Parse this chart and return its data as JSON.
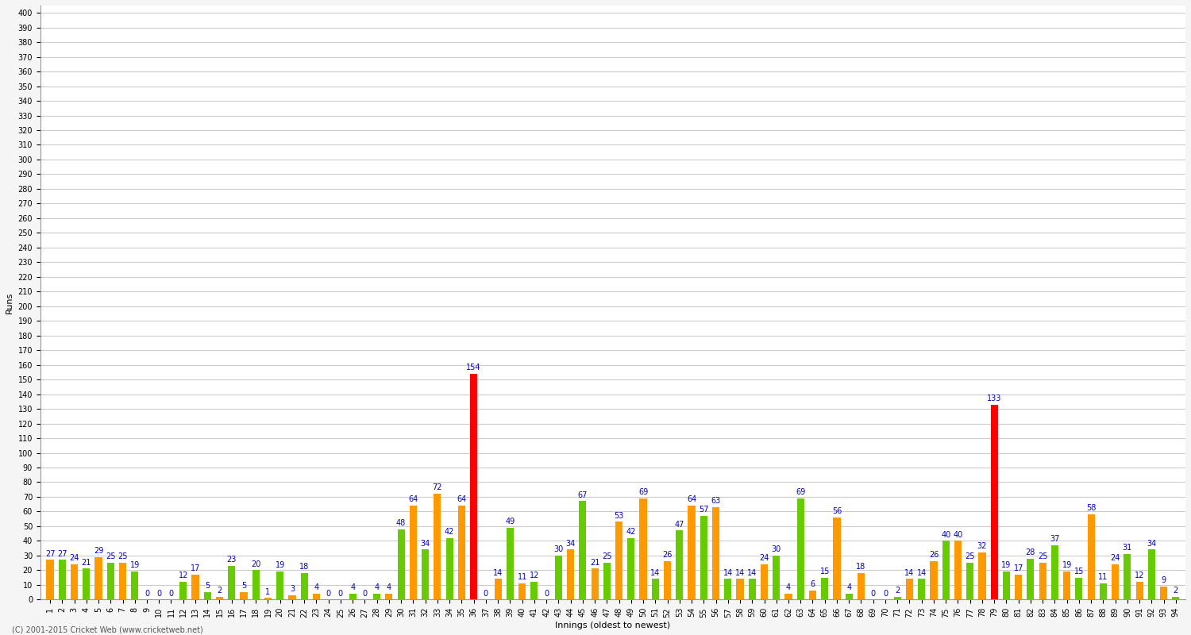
{
  "xlabel": "Innings (oldest to newest)",
  "ylabel": "Runs",
  "background_color": "#f5f5f5",
  "plot_bg_color": "#ffffff",
  "grid_color": "#cccccc",
  "scores": [
    27,
    27,
    24,
    21,
    29,
    25,
    25,
    19,
    0,
    0,
    0,
    12,
    17,
    5,
    2,
    23,
    5,
    20,
    1,
    19,
    3,
    18,
    4,
    0,
    0,
    4,
    0,
    4,
    4,
    48,
    64,
    34,
    72,
    42,
    64,
    154,
    0,
    14,
    49,
    11,
    12,
    0,
    30,
    34,
    67,
    21,
    25,
    53,
    42,
    69,
    14,
    26,
    47,
    64,
    57,
    63,
    14,
    14,
    14,
    24,
    30,
    4,
    69,
    6,
    15,
    56,
    4,
    18,
    0,
    0,
    2,
    14,
    14,
    26,
    40,
    40,
    25,
    32,
    133,
    19,
    17,
    28,
    25,
    37,
    19,
    15,
    58,
    11,
    24,
    31,
    12,
    34,
    9,
    2
  ],
  "colors_explicit": [
    "#ff9900",
    "#66cc00",
    "#ff9900",
    "#66cc00",
    "#ff9900",
    "#66cc00",
    "#ff9900",
    "#66cc00",
    "#ff9900",
    "#66cc00",
    "#ff9900",
    "#66cc00",
    "#ff9900",
    "#66cc00",
    "#ff9900",
    "#66cc00",
    "#ff9900",
    "#66cc00",
    "#ff9900",
    "#66cc00",
    "#ff9900",
    "#66cc00",
    "#ff9900",
    "#66cc00",
    "#ff9900",
    "#66cc00",
    "#ff9900",
    "#66cc00",
    "#ff9900",
    "#66cc00",
    "#ff9900",
    "#66cc00",
    "#ff9900",
    "#66cc00",
    "#ff9900",
    "#ff0000",
    "#66cc00",
    "#ff9900",
    "#66cc00",
    "#ff9900",
    "#66cc00",
    "#ff9900",
    "#66cc00",
    "#ff9900",
    "#66cc00",
    "#ff9900",
    "#66cc00",
    "#ff9900",
    "#66cc00",
    "#ff9900",
    "#66cc00",
    "#ff9900",
    "#66cc00",
    "#ff9900",
    "#66cc00",
    "#ff9900",
    "#66cc00",
    "#ff9900",
    "#66cc00",
    "#ff9900",
    "#66cc00",
    "#ff9900",
    "#66cc00",
    "#ff9900",
    "#66cc00",
    "#ff9900",
    "#66cc00",
    "#ff9900",
    "#66cc00",
    "#ff9900",
    "#66cc00",
    "#ff9900",
    "#66cc00",
    "#ff9900",
    "#66cc00",
    "#ff9900",
    "#66cc00",
    "#ff9900",
    "#ff0000",
    "#66cc00",
    "#ff9900",
    "#66cc00",
    "#ff9900",
    "#66cc00",
    "#ff9900",
    "#66cc00",
    "#ff9900",
    "#66cc00",
    "#ff9900",
    "#66cc00",
    "#ff9900",
    "#66cc00",
    "#ff9900",
    "#66cc00"
  ],
  "innings_labels": [
    "1",
    "2",
    "3",
    "4",
    "5",
    "6",
    "7",
    "8",
    "9",
    "10",
    "11",
    "12",
    "13",
    "14",
    "15",
    "16",
    "17",
    "18",
    "19",
    "20",
    "21",
    "22",
    "23",
    "24",
    "25",
    "26",
    "27",
    "28",
    "29",
    "30",
    "31",
    "32",
    "33",
    "34",
    "35",
    "36",
    "37",
    "38",
    "39",
    "40",
    "41",
    "42",
    "43",
    "44",
    "45",
    "46",
    "47",
    "48",
    "49",
    "50",
    "51",
    "52",
    "53",
    "54",
    "55",
    "56",
    "57",
    "58",
    "59",
    "60",
    "61",
    "62",
    "63",
    "64",
    "65",
    "66",
    "67",
    "68",
    "69",
    "70",
    "71",
    "72",
    "73",
    "74",
    "75",
    "76",
    "77",
    "78",
    "79",
    "80",
    "81",
    "82",
    "83",
    "84",
    "85",
    "86",
    "87",
    "88",
    "89",
    "90",
    "91",
    "92",
    "93",
    "94"
  ],
  "hundred_threshold": 100,
  "bar_color_normal_1": "#ff9900",
  "bar_color_normal_2": "#66cc00",
  "bar_color_hundred": "#ff0000",
  "label_color": "#0000cc",
  "label_fontsize": 7,
  "tick_fontsize": 7,
  "yticks": [
    0,
    10,
    20,
    30,
    40,
    50,
    60,
    70,
    80,
    90,
    100,
    110,
    120,
    130,
    140,
    150,
    160,
    170,
    180,
    190,
    200,
    210,
    220,
    230,
    240,
    250,
    260,
    270,
    280,
    290,
    300,
    310,
    320,
    330,
    340,
    350,
    360,
    370,
    380,
    390,
    400
  ],
  "ylim": [
    0,
    405
  ],
  "footer": "(C) 2001-2015 Cricket Web (www.cricketweb.net)"
}
